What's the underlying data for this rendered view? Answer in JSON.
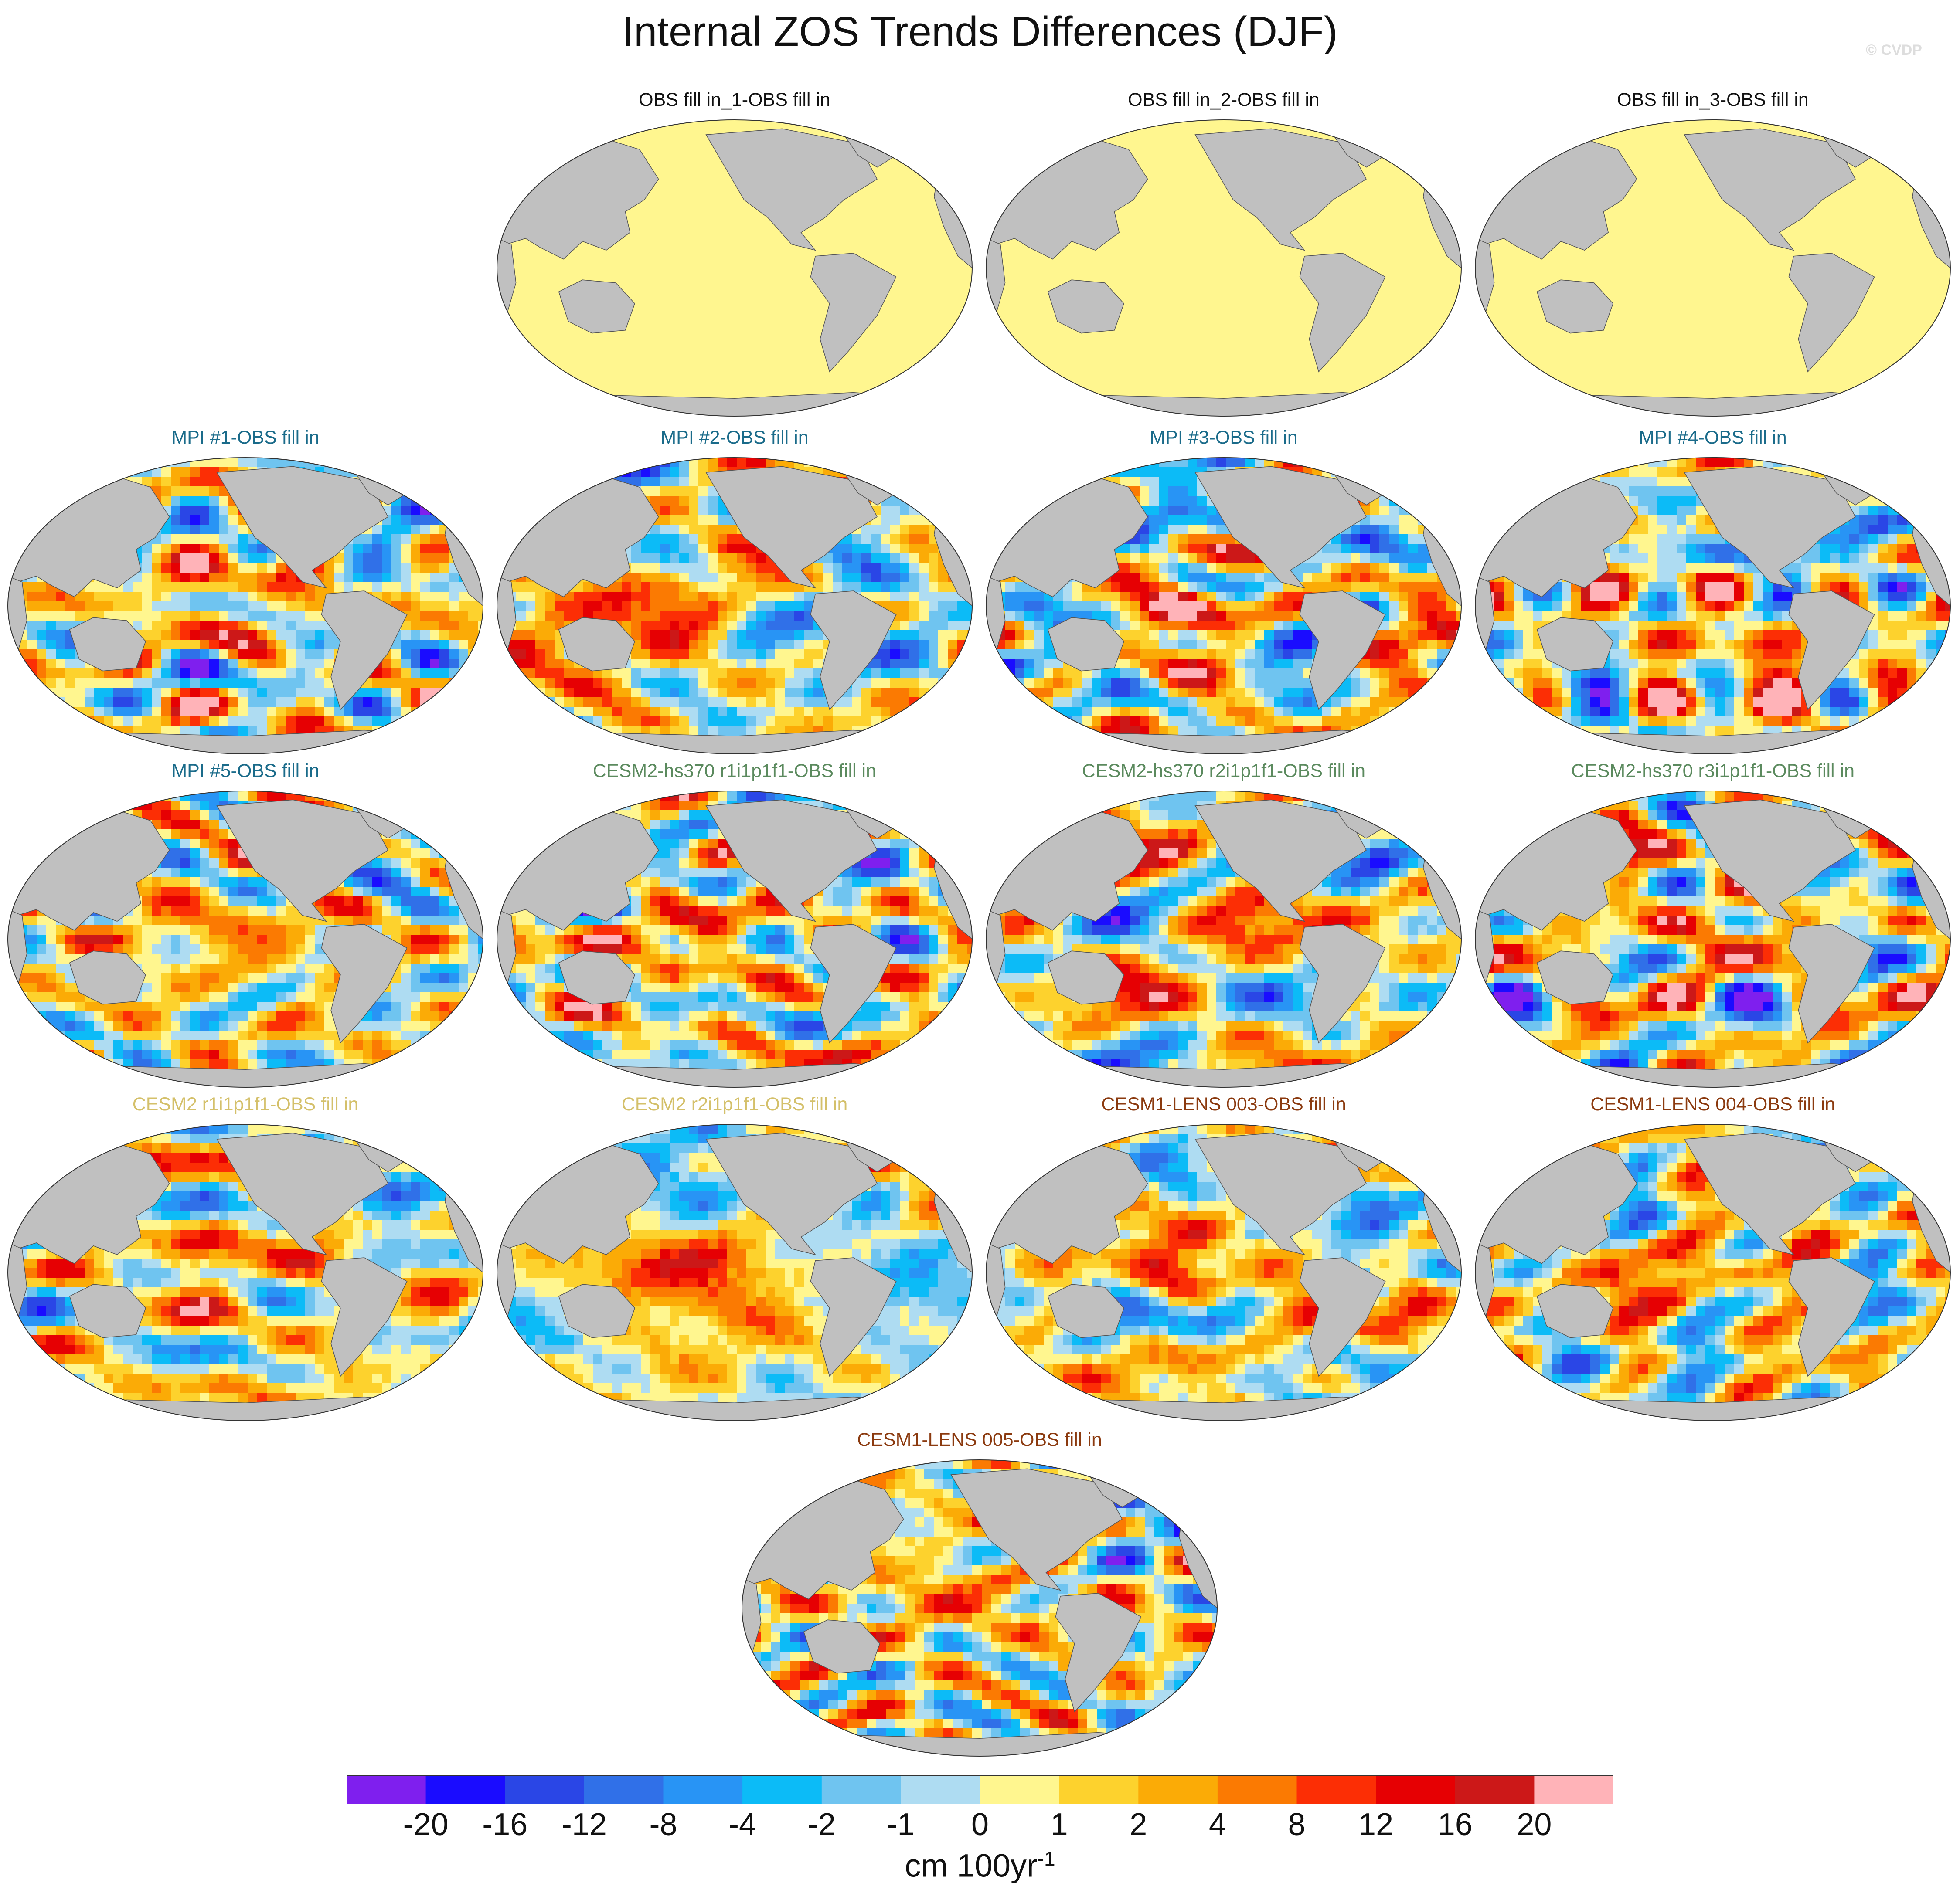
{
  "title": "Internal ZOS Trends Differences (DJF)",
  "watermark": "© CVDP",
  "colors": {
    "land": "#c0c0c0",
    "zero_fill": "#fff68f",
    "text_black": "#111111",
    "mpi_title": "#1a6b8a",
    "cesm2_hs370_title": "#5b8a5e",
    "cesm2_title": "#d4c06a",
    "cesm1_title": "#8b3a0f"
  },
  "panels": [
    {
      "label": "OBS fill in_1-OBS fill in",
      "title_color": "#111111",
      "kind": "obs"
    },
    {
      "label": "OBS fill in_2-OBS fill in",
      "title_color": "#111111",
      "kind": "obs"
    },
    {
      "label": "OBS fill in_3-OBS fill in",
      "title_color": "#111111",
      "kind": "obs"
    },
    {
      "label": "MPI #1-OBS fill in",
      "title_color": "#1a6b8a",
      "kind": "model"
    },
    {
      "label": "MPI #2-OBS fill in",
      "title_color": "#1a6b8a",
      "kind": "model"
    },
    {
      "label": "MPI #3-OBS fill in",
      "title_color": "#1a6b8a",
      "kind": "model"
    },
    {
      "label": "MPI #4-OBS fill in",
      "title_color": "#1a6b8a",
      "kind": "model"
    },
    {
      "label": "MPI #5-OBS fill in",
      "title_color": "#1a6b8a",
      "kind": "model"
    },
    {
      "label": "CESM2-hs370 r1i1p1f1-OBS fill in",
      "title_color": "#5b8a5e",
      "kind": "model"
    },
    {
      "label": "CESM2-hs370 r2i1p1f1-OBS fill in",
      "title_color": "#5b8a5e",
      "kind": "model"
    },
    {
      "label": "CESM2-hs370 r3i1p1f1-OBS fill in",
      "title_color": "#5b8a5e",
      "kind": "model"
    },
    {
      "label": "CESM2 r1i1p1f1-OBS fill in",
      "title_color": "#d4c06a",
      "kind": "model"
    },
    {
      "label": "CESM2 r2i1p1f1-OBS fill in",
      "title_color": "#d4c06a",
      "kind": "model"
    },
    {
      "label": "CESM1-LENS 003-OBS fill in",
      "title_color": "#8b3a0f",
      "kind": "model"
    },
    {
      "label": "CESM1-LENS 004-OBS fill in",
      "title_color": "#8b3a0f",
      "kind": "model"
    },
    {
      "label": "CESM1-LENS 005-OBS fill in",
      "title_color": "#8b3a0f",
      "kind": "model"
    }
  ],
  "colorbar": {
    "colors": [
      "#7f1fee",
      "#1a0cff",
      "#2a46e6",
      "#3070e8",
      "#2894f5",
      "#0cbbf7",
      "#6fc4f0",
      "#aedcf2",
      "#fff68f",
      "#fdd22d",
      "#fbab06",
      "#fb7a02",
      "#fc2e05",
      "#e60003",
      "#cc1818",
      "#ffb3b8"
    ],
    "labels": [
      "-20",
      "-16",
      "-12",
      "-8",
      "-4",
      "-2",
      "-1",
      "0",
      "1",
      "2",
      "4",
      "8",
      "12",
      "16",
      "20"
    ]
  },
  "units": {
    "base": "cm 100yr",
    "exponent": "-1"
  }
}
